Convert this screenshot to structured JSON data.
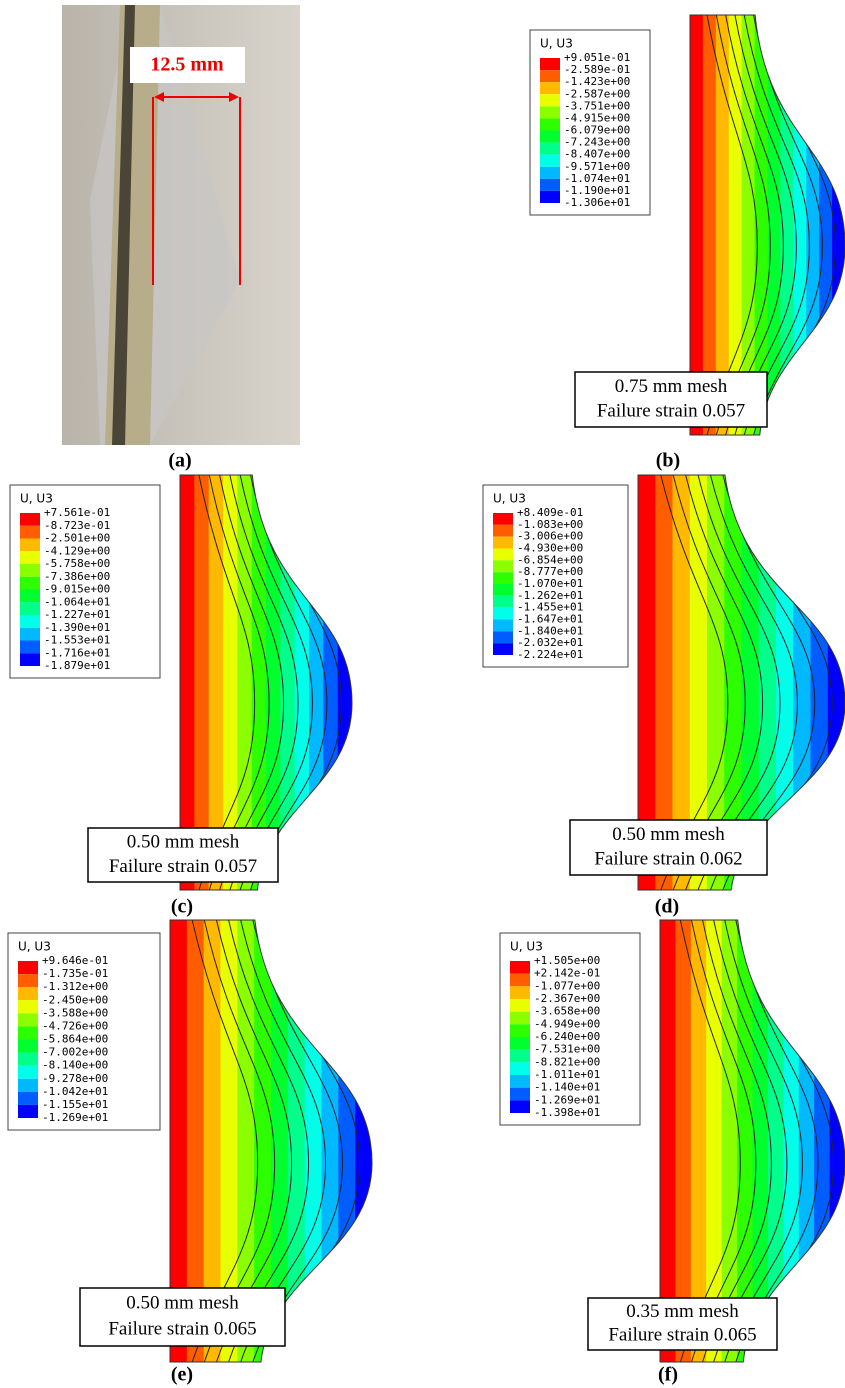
{
  "panels": [
    {
      "label": "(a)",
      "annotation": "12.5 mm"
    },
    {
      "label": "(b)",
      "legend": {
        "title": "U, U3",
        "values": [
          "+9.051e-01",
          "-2.589e-01",
          "-1.423e+00",
          "-2.587e+00",
          "-3.751e+00",
          "-4.915e+00",
          "-6.079e+00",
          "-7.243e+00",
          "-8.407e+00",
          "-9.571e+00",
          "-1.074e+01",
          "-1.190e+01",
          "-1.306e+01"
        ]
      },
      "caption": [
        "0.75 mm mesh",
        "Failure strain 0.057"
      ]
    },
    {
      "label": "(c)",
      "legend": {
        "title": "U, U3",
        "values": [
          "+7.561e-01",
          "-8.723e-01",
          "-2.501e+00",
          "-4.129e+00",
          "-5.758e+00",
          "-7.386e+00",
          "-9.015e+00",
          "-1.064e+01",
          "-1.227e+01",
          "-1.390e+01",
          "-1.553e+01",
          "-1.716e+01",
          "-1.879e+01"
        ]
      },
      "caption": [
        "0.50 mm mesh",
        "Failure strain 0.057"
      ]
    },
    {
      "label": "(d)",
      "legend": {
        "title": "U, U3",
        "values": [
          "+8.409e-01",
          "-1.083e+00",
          "-3.006e+00",
          "-4.930e+00",
          "-6.854e+00",
          "-8.777e+00",
          "-1.070e+01",
          "-1.262e+01",
          "-1.455e+01",
          "-1.647e+01",
          "-1.840e+01",
          "-2.032e+01",
          "-2.224e+01"
        ]
      },
      "caption": [
        "0.50 mm mesh",
        "Failure strain 0.062"
      ]
    },
    {
      "label": "(e)",
      "legend": {
        "title": "U, U3",
        "values": [
          "+9.646e-01",
          "-1.735e-01",
          "-1.312e+00",
          "-2.450e+00",
          "-3.588e+00",
          "-4.726e+00",
          "-5.864e+00",
          "-7.002e+00",
          "-8.140e+00",
          "-9.278e+00",
          "-1.042e+01",
          "-1.155e+01",
          "-1.269e+01"
        ]
      },
      "caption": [
        "0.50 mm mesh",
        "Failure strain 0.065"
      ]
    },
    {
      "label": "(f)",
      "legend": {
        "title": "U, U3",
        "values": [
          "+1.505e+00",
          "+2.142e-01",
          "-1.077e+00",
          "-2.367e+00",
          "-3.658e+00",
          "-4.949e+00",
          "-6.240e+00",
          "-7.531e+00",
          "-8.821e+00",
          "-1.011e+01",
          "-1.140e+01",
          "-1.269e+01",
          "-1.398e+01"
        ]
      },
      "caption": [
        "0.35 mm mesh",
        "Failure strain 0.065"
      ]
    }
  ]
}
